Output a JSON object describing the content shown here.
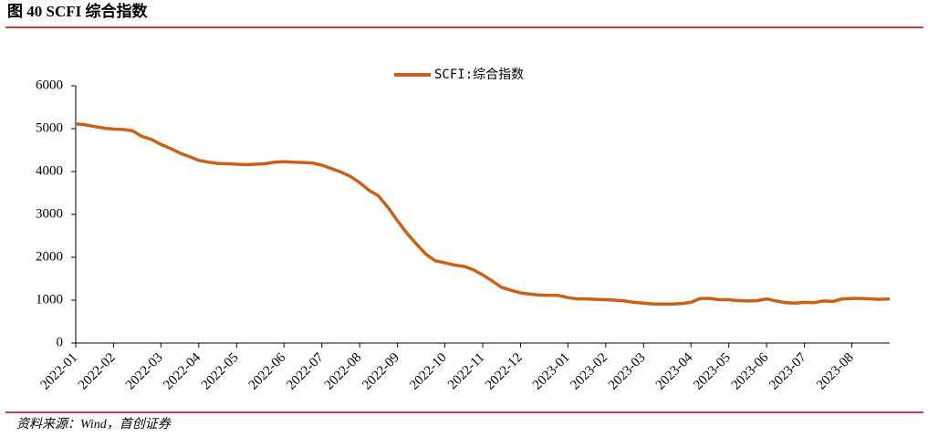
{
  "chart_data": {
    "type": "line",
    "title": "图 40 SCFI 综合指数",
    "source": "资料来源：Wind，首创证券",
    "categories": [
      "2022-01",
      null,
      null,
      null,
      "2022-02",
      null,
      null,
      null,
      null,
      "2022-03",
      null,
      null,
      null,
      "2022-04",
      null,
      null,
      null,
      "2022-05",
      null,
      null,
      null,
      null,
      "2022-06",
      null,
      null,
      null,
      "2022-07",
      null,
      null,
      null,
      "2022-08",
      null,
      null,
      null,
      "2022-09",
      null,
      null,
      null,
      null,
      "2022-10",
      null,
      null,
      null,
      "2022-11",
      null,
      null,
      null,
      "2022-12",
      null,
      null,
      null,
      null,
      "2023-01",
      null,
      null,
      null,
      "2023-02",
      null,
      null,
      null,
      "2023-03",
      null,
      null,
      null,
      null,
      "2023-04",
      null,
      null,
      null,
      "2023-05",
      null,
      null,
      null,
      "2023-06",
      null,
      null,
      null,
      "2023-07",
      null,
      null,
      null,
      null,
      "2023-08",
      null,
      null,
      null,
      null
    ],
    "series": [
      {
        "name": "SCFI:综合指数",
        "color": "#c8611a",
        "values": [
          5110,
          5090,
          5050,
          5010,
          4990,
          4980,
          4950,
          4820,
          4750,
          4630,
          4540,
          4430,
          4350,
          4260,
          4220,
          4190,
          4180,
          4170,
          4160,
          4170,
          4180,
          4220,
          4230,
          4220,
          4210,
          4200,
          4150,
          4070,
          3990,
          3890,
          3740,
          3560,
          3430,
          3160,
          2850,
          2560,
          2310,
          2070,
          1920,
          1870,
          1820,
          1790,
          1710,
          1590,
          1450,
          1300,
          1230,
          1170,
          1140,
          1120,
          1110,
          1110,
          1060,
          1030,
          1030,
          1020,
          1010,
          1000,
          980,
          950,
          930,
          910,
          910,
          910,
          920,
          950,
          1040,
          1040,
          1010,
          1010,
          990,
          980,
          990,
          1030,
          980,
          940,
          930,
          950,
          940,
          980,
          970,
          1030,
          1040,
          1040,
          1030,
          1020,
          1030
        ]
      }
    ],
    "ylim": [
      0,
      6000
    ],
    "yticks": [
      0,
      1000,
      2000,
      3000,
      4000,
      5000,
      6000
    ],
    "grid": false,
    "legend": "top"
  }
}
